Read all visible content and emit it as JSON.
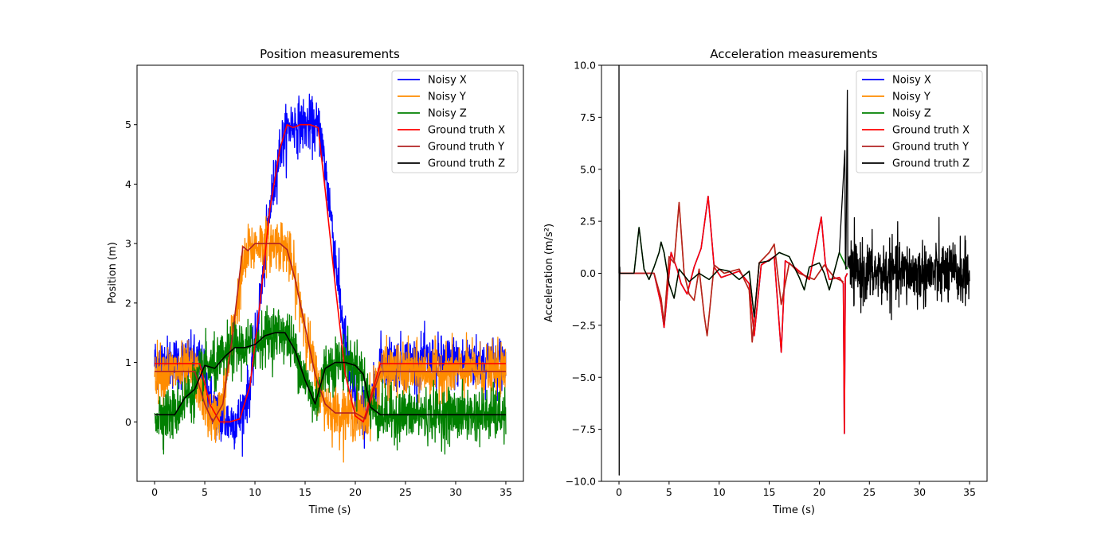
{
  "chart_data": [
    {
      "type": "line",
      "title": "Position measurements",
      "xlabel": "Time (s)",
      "ylabel": "Position (m)",
      "xlim": [
        -1.75,
        36.75
      ],
      "ylim": [
        -1.0,
        6.0
      ],
      "xticks": [
        0,
        5,
        10,
        15,
        20,
        25,
        30,
        35
      ],
      "xtick_labels": [
        "0",
        "5",
        "10",
        "15",
        "20",
        "25",
        "30",
        "35"
      ],
      "yticks": [
        0,
        1,
        2,
        3,
        4,
        5
      ],
      "ytick_labels": [
        "0",
        "1",
        "2",
        "3",
        "4",
        "5"
      ],
      "grid": false,
      "legend_position": "top-right",
      "series": [
        {
          "name": "Noisy X",
          "color": "#0000ff",
          "noise": 0.22,
          "x": [
            0,
            4.5,
            5.5,
            6.5,
            7.5,
            8.5,
            9.5,
            10.5,
            11.5,
            12.5,
            13.5,
            14.5,
            15.5,
            16.5,
            17.5,
            18.5,
            19.5,
            20.5,
            21.5,
            22.5,
            35
          ],
          "y": [
            1.0,
            1.0,
            0.4,
            0.05,
            0.0,
            0.05,
            0.6,
            2.0,
            3.6,
            4.6,
            5.0,
            5.0,
            5.0,
            4.9,
            3.6,
            2.0,
            0.7,
            0.1,
            0.2,
            1.0,
            1.0
          ]
        },
        {
          "name": "Noisy Y",
          "color": "#ff8c00",
          "noise": 0.22,
          "x": [
            0,
            4.0,
            5.0,
            5.8,
            6.8,
            7.8,
            8.8,
            9.5,
            10.5,
            12.5,
            13.2,
            14.0,
            15.0,
            16.0,
            17.0,
            18.0,
            19.0,
            20.0,
            21.0,
            22.0,
            22.5,
            35
          ],
          "y": [
            0.85,
            0.85,
            0.3,
            0.0,
            0.3,
            1.5,
            2.6,
            2.9,
            3.0,
            3.0,
            2.9,
            2.4,
            1.6,
            0.8,
            0.3,
            0.15,
            0.15,
            0.15,
            0.05,
            0.6,
            0.85,
            0.85
          ]
        },
        {
          "name": "Noisy Z",
          "color": "#008000",
          "noise": 0.22,
          "x": [
            0,
            2.0,
            3.0,
            4.0,
            5.0,
            6.0,
            7.0,
            8.0,
            9.0,
            10.0,
            11.0,
            12.0,
            13.0,
            14.0,
            15.0,
            16.0,
            17.0,
            18.0,
            19.0,
            20.0,
            20.8,
            21.5,
            22.5,
            35
          ],
          "y": [
            0.12,
            0.12,
            0.4,
            0.55,
            0.95,
            0.9,
            1.1,
            1.25,
            1.25,
            1.3,
            1.45,
            1.5,
            1.5,
            1.2,
            0.7,
            0.3,
            0.9,
            1.0,
            1.0,
            0.95,
            0.8,
            0.25,
            0.12,
            0.12
          ]
        },
        {
          "name": "Ground truth X",
          "color": "#ff0000",
          "noise": 0,
          "x": [
            0,
            4.5,
            5.5,
            6.5,
            7.5,
            8.5,
            9.5,
            10.5,
            11.5,
            12.5,
            13.2,
            13.8,
            14.5,
            15.5,
            16.3,
            17.0,
            18.0,
            19.0,
            20.0,
            20.8,
            21.5,
            22.5,
            35
          ],
          "y": [
            0.98,
            0.98,
            0.3,
            0.0,
            0.0,
            0.05,
            0.6,
            2.0,
            3.6,
            4.6,
            5.0,
            4.95,
            5.0,
            5.0,
            4.95,
            3.9,
            2.3,
            0.8,
            0.1,
            0.0,
            0.4,
            0.98,
            0.98
          ]
        },
        {
          "name": "Ground truth Y",
          "color": "#b22222",
          "noise": 0,
          "x": [
            0,
            4.0,
            5.0,
            5.8,
            6.8,
            7.8,
            8.8,
            9.3,
            10.0,
            12.5,
            13.2,
            14.0,
            15.0,
            16.0,
            17.0,
            18.0,
            19.0,
            20.0,
            21.0,
            22.0,
            22.5,
            35
          ],
          "y": [
            0.85,
            0.85,
            0.3,
            0.0,
            0.3,
            1.5,
            2.95,
            2.88,
            3.0,
            3.0,
            2.9,
            2.4,
            1.6,
            0.8,
            0.3,
            0.15,
            0.15,
            0.15,
            0.05,
            0.6,
            0.85,
            0.85
          ]
        },
        {
          "name": "Ground truth Z",
          "color": "#000000",
          "noise": 0,
          "x": [
            0,
            2.0,
            3.0,
            4.0,
            5.0,
            6.0,
            7.0,
            8.0,
            9.0,
            10.0,
            11.0,
            12.0,
            13.0,
            14.0,
            15.0,
            16.0,
            17.0,
            18.0,
            19.0,
            20.0,
            20.8,
            21.5,
            22.5,
            35
          ],
          "y": [
            0.12,
            0.12,
            0.4,
            0.55,
            0.95,
            0.9,
            1.1,
            1.25,
            1.25,
            1.3,
            1.45,
            1.5,
            1.5,
            1.2,
            0.7,
            0.3,
            0.9,
            1.0,
            1.0,
            0.95,
            0.8,
            0.25,
            0.12,
            0.12
          ]
        }
      ]
    },
    {
      "type": "line",
      "title": "Acceleration measurements",
      "xlabel": "Time (s)",
      "ylabel": "Acceleration (m/s²)",
      "xlim": [
        -1.75,
        36.75
      ],
      "ylim": [
        -10.0,
        10.0
      ],
      "xticks": [
        0,
        5,
        10,
        15,
        20,
        25,
        30,
        35
      ],
      "xtick_labels": [
        "0",
        "5",
        "10",
        "15",
        "20",
        "25",
        "30",
        "35"
      ],
      "yticks": [
        -10,
        -7.5,
        -5,
        -2.5,
        0,
        2.5,
        5,
        7.5,
        10
      ],
      "ytick_labels": [
        "−10.0",
        "−7.5",
        "−5.0",
        "−2.5",
        "0.0",
        "2.5",
        "5.0",
        "7.5",
        "10.0"
      ],
      "grid": false,
      "legend_position": "top-right",
      "series": [
        {
          "name": "Noisy X",
          "color": "#0000ff",
          "noise": 0,
          "x": [
            0,
            3.5,
            4.2,
            4.5,
            5.2,
            5.8,
            6.2,
            6.8,
            7.5,
            8.2,
            8.9,
            9.5,
            10.2,
            12.0,
            13.0,
            13.5,
            14.2,
            15.5,
            16.2,
            16.6,
            17.5,
            19.0,
            20.2,
            20.6,
            21.0,
            22.0,
            22.4,
            22.5,
            22.6,
            22.8
          ],
          "y": [
            0,
            0,
            -1.5,
            -2.6,
            1.0,
            0.2,
            -0.5,
            -1.0,
            0.3,
            1.2,
            3.7,
            0.3,
            -0.2,
            0.1,
            -0.5,
            -3.0,
            0.4,
            0.8,
            -3.8,
            0.6,
            0.3,
            -0.3,
            2.7,
            0.5,
            -0.3,
            -0.2,
            -0.5,
            -7.7,
            -0.2,
            0
          ]
        },
        {
          "name": "Noisy Y",
          "color": "#ff8c00",
          "noise": 0,
          "x": [
            0,
            3.5,
            4.2,
            4.5,
            5.0,
            5.5,
            6.0,
            6.5,
            7.0,
            7.5,
            8.0,
            8.5,
            8.8,
            9.5,
            10.5,
            12.0,
            13.0,
            13.3,
            14.0,
            15.0,
            15.5,
            16.2,
            17.0,
            18.0,
            19.5,
            20.5,
            21.5,
            22.4
          ],
          "y": [
            0,
            0,
            -1.2,
            -2.4,
            0.8,
            0.5,
            3.4,
            0.0,
            -1.0,
            -1.3,
            0.2,
            -2.0,
            -3.0,
            0.4,
            0.0,
            0.2,
            -0.8,
            -3.3,
            0.5,
            1.0,
            1.4,
            -1.5,
            0.5,
            0.0,
            -0.3,
            0.4,
            -0.2,
            -0.4
          ]
        },
        {
          "name": "Noisy Z",
          "color": "#008000",
          "noise": 0,
          "x": [
            0,
            1.5,
            2.0,
            2.5,
            3.0,
            3.5,
            4.0,
            4.2,
            4.5,
            5.0,
            5.5,
            6.0,
            7.0,
            8.0,
            9.0,
            10.0,
            11.0,
            12.0,
            13.0,
            13.5,
            14.0,
            15.0,
            16.0,
            17.0,
            18.0,
            18.5,
            19.0,
            20.0,
            20.5,
            21.0,
            22.0,
            22.8
          ],
          "y": [
            0,
            0,
            2.2,
            0.2,
            -0.3,
            0.3,
            1.0,
            1.5,
            1.0,
            -0.5,
            -1.2,
            0.2,
            -0.4,
            0.0,
            -0.3,
            0.2,
            0.1,
            -0.3,
            0.1,
            -2.1,
            0.5,
            0.6,
            1.0,
            0.8,
            -0.2,
            -0.8,
            0.3,
            0.5,
            0.0,
            -0.8,
            1.0,
            0.2
          ]
        },
        {
          "name": "Ground truth X",
          "color": "#ff0000",
          "noise": 0,
          "x": [
            0,
            3.5,
            4.2,
            4.5,
            5.2,
            5.8,
            6.2,
            6.8,
            7.5,
            8.2,
            8.9,
            9.5,
            10.2,
            12.0,
            13.0,
            13.5,
            14.2,
            15.5,
            16.2,
            16.6,
            17.5,
            19.0,
            20.2,
            20.6,
            21.0,
            22.0,
            22.4,
            22.5,
            22.6,
            22.8
          ],
          "y": [
            0,
            0,
            -1.5,
            -2.6,
            1.0,
            0.2,
            -0.5,
            -1.0,
            0.3,
            1.2,
            3.7,
            0.3,
            -0.2,
            0.1,
            -0.5,
            -3.0,
            0.4,
            0.8,
            -3.8,
            0.6,
            0.3,
            -0.3,
            2.7,
            0.5,
            -0.3,
            -0.2,
            -0.5,
            -7.7,
            -0.2,
            0
          ]
        },
        {
          "name": "Ground truth Y",
          "color": "#b22222",
          "noise": 0,
          "x": [
            0,
            3.5,
            4.2,
            4.5,
            5.0,
            5.5,
            6.0,
            6.5,
            7.0,
            7.5,
            8.0,
            8.5,
            8.8,
            9.5,
            10.5,
            12.0,
            13.0,
            13.3,
            14.0,
            15.0,
            15.5,
            16.2,
            17.0,
            18.0,
            19.5,
            20.5,
            21.5,
            22.4
          ],
          "y": [
            0,
            0,
            -1.2,
            -2.4,
            0.8,
            0.5,
            3.4,
            0.0,
            -1.0,
            -1.3,
            0.2,
            -2.0,
            -3.0,
            0.4,
            0.0,
            0.2,
            -0.8,
            -3.3,
            0.5,
            1.0,
            1.4,
            -1.5,
            0.5,
            0.0,
            -0.3,
            0.4,
            -0.2,
            -0.4
          ]
        },
        {
          "name": "Ground truth Z",
          "color": "#000000",
          "noise": 0.75,
          "noise_start": 23,
          "x": [
            0,
            0.0,
            0.02,
            0.04,
            0.06,
            0.08,
            0.1,
            0.12,
            1.5,
            2.0,
            2.5,
            3.0,
            3.5,
            4.0,
            4.2,
            4.5,
            5.0,
            5.5,
            6.0,
            7.0,
            8.0,
            9.0,
            10.0,
            11.0,
            12.0,
            13.0,
            13.5,
            14.0,
            15.0,
            16.0,
            17.0,
            18.0,
            18.5,
            19.0,
            20.0,
            20.5,
            21.0,
            22.0,
            22.55,
            22.6,
            22.65,
            22.8,
            22.85,
            22.9,
            23.0,
            35
          ],
          "y": [
            0,
            10.0,
            -9.7,
            4.0,
            -1.3,
            0.3,
            0,
            0,
            0,
            2.2,
            0.2,
            -0.3,
            0.3,
            1.0,
            1.5,
            1.0,
            -0.5,
            -1.2,
            0.2,
            -0.4,
            0.0,
            -0.3,
            0.2,
            0.1,
            -0.3,
            0.1,
            -2.1,
            0.5,
            0.6,
            1.0,
            0.8,
            -0.2,
            -0.8,
            0.3,
            0.5,
            0.0,
            -0.8,
            1.0,
            5.9,
            0.5,
            0.2,
            8.8,
            0.3,
            0.8,
            0.0,
            0.0
          ]
        }
      ]
    }
  ]
}
